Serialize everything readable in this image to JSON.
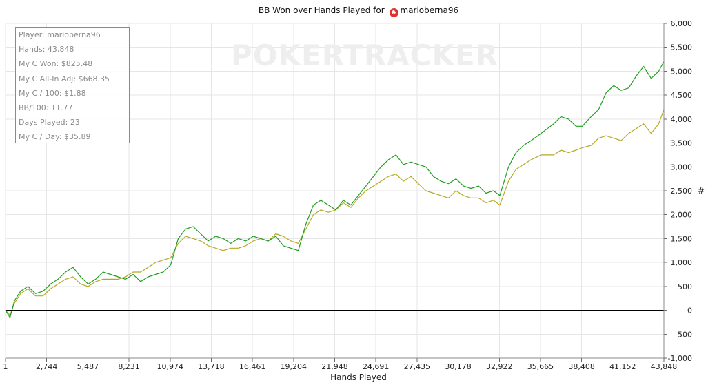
{
  "title_prefix": "BB Won over Hands Played for",
  "player_name": "marioberna96",
  "watermark": "POKERTRACKER",
  "stats": [
    "Player: marioberna96",
    "Hands: 43,848",
    "My C Won: $825.48",
    "My C All-In Adj: $668.35",
    "My C / 100: $1.88",
    "BB/100: 11.77",
    "Days Played: 23",
    "My C / Day: $35.89"
  ],
  "colors": {
    "won": "#1f9e1f",
    "allin_adj": "#b5a922",
    "grid": "#e6e6e6",
    "axis": "#000000"
  },
  "chart_data": {
    "type": "line",
    "title": "BB Won over Hands Played for marioberna96",
    "xlabel": "Hands Played",
    "ylabel": "#",
    "xlim": [
      1,
      43848
    ],
    "ylim": [
      -1000,
      6000
    ],
    "x_ticks": [
      "1",
      "2,744",
      "5,487",
      "8,231",
      "10,974",
      "13,718",
      "16,461",
      "19,204",
      "21,948",
      "24,691",
      "27,435",
      "30,178",
      "32,922",
      "35,665",
      "38,408",
      "41,152",
      "43,848"
    ],
    "y_ticks": [
      "6,000",
      "5,500",
      "5,000",
      "4,500",
      "4,000",
      "3,500",
      "3,000",
      "2,500",
      "2,000",
      "1,500",
      "1,000",
      "500",
      "0",
      "-500",
      "-1,000"
    ],
    "y_tick_values": [
      6000,
      5500,
      5000,
      4500,
      4000,
      3500,
      3000,
      2500,
      2000,
      1500,
      1000,
      500,
      0,
      -500,
      -1000
    ],
    "grid": true,
    "series": [
      {
        "color": "#1f9e1f",
        "points": [
          [
            1,
            0
          ],
          [
            300,
            -150
          ],
          [
            600,
            200
          ],
          [
            1000,
            400
          ],
          [
            1500,
            500
          ],
          [
            2000,
            350
          ],
          [
            2500,
            400
          ],
          [
            3000,
            550
          ],
          [
            3500,
            650
          ],
          [
            4000,
            800
          ],
          [
            4500,
            900
          ],
          [
            5000,
            700
          ],
          [
            5500,
            550
          ],
          [
            6000,
            650
          ],
          [
            6500,
            800
          ],
          [
            7000,
            750
          ],
          [
            7500,
            700
          ],
          [
            8000,
            650
          ],
          [
            8500,
            750
          ],
          [
            9000,
            600
          ],
          [
            9500,
            700
          ],
          [
            10000,
            750
          ],
          [
            10500,
            800
          ],
          [
            11000,
            950
          ],
          [
            11500,
            1500
          ],
          [
            12000,
            1700
          ],
          [
            12500,
            1750
          ],
          [
            13000,
            1600
          ],
          [
            13500,
            1450
          ],
          [
            14000,
            1550
          ],
          [
            14500,
            1500
          ],
          [
            15000,
            1400
          ],
          [
            15500,
            1500
          ],
          [
            16000,
            1450
          ],
          [
            16500,
            1550
          ],
          [
            17000,
            1500
          ],
          [
            17500,
            1450
          ],
          [
            18000,
            1550
          ],
          [
            18500,
            1350
          ],
          [
            19000,
            1300
          ],
          [
            19500,
            1250
          ],
          [
            20000,
            1800
          ],
          [
            20500,
            2200
          ],
          [
            21000,
            2300
          ],
          [
            21500,
            2200
          ],
          [
            22000,
            2100
          ],
          [
            22500,
            2300
          ],
          [
            23000,
            2200
          ],
          [
            23500,
            2400
          ],
          [
            24000,
            2600
          ],
          [
            24500,
            2800
          ],
          [
            25000,
            3000
          ],
          [
            25500,
            3150
          ],
          [
            26000,
            3250
          ],
          [
            26500,
            3050
          ],
          [
            27000,
            3100
          ],
          [
            27500,
            3050
          ],
          [
            28000,
            3000
          ],
          [
            28500,
            2800
          ],
          [
            29000,
            2700
          ],
          [
            29500,
            2650
          ],
          [
            30000,
            2750
          ],
          [
            30500,
            2600
          ],
          [
            31000,
            2550
          ],
          [
            31500,
            2600
          ],
          [
            32000,
            2450
          ],
          [
            32500,
            2500
          ],
          [
            32922,
            2400
          ],
          [
            33500,
            3000
          ],
          [
            34000,
            3300
          ],
          [
            34500,
            3450
          ],
          [
            35000,
            3550
          ],
          [
            35665,
            3700
          ],
          [
            36500,
            3900
          ],
          [
            37000,
            4050
          ],
          [
            37500,
            4000
          ],
          [
            38000,
            3850
          ],
          [
            38408,
            3850
          ],
          [
            39000,
            4050
          ],
          [
            39500,
            4200
          ],
          [
            40000,
            4550
          ],
          [
            40500,
            4700
          ],
          [
            41000,
            4600
          ],
          [
            41500,
            4650
          ],
          [
            42000,
            4900
          ],
          [
            42500,
            5100
          ],
          [
            43000,
            4850
          ],
          [
            43500,
            5000
          ],
          [
            43848,
            5200
          ]
        ]
      },
      {
        "color": "#b5a922",
        "points": [
          [
            1,
            0
          ],
          [
            300,
            -100
          ],
          [
            600,
            150
          ],
          [
            1000,
            350
          ],
          [
            1500,
            450
          ],
          [
            2000,
            300
          ],
          [
            2500,
            300
          ],
          [
            3000,
            450
          ],
          [
            3500,
            550
          ],
          [
            4000,
            650
          ],
          [
            4500,
            700
          ],
          [
            5000,
            550
          ],
          [
            5500,
            500
          ],
          [
            6000,
            600
          ],
          [
            6500,
            650
          ],
          [
            7000,
            650
          ],
          [
            7500,
            650
          ],
          [
            8000,
            700
          ],
          [
            8500,
            800
          ],
          [
            9000,
            800
          ],
          [
            9500,
            900
          ],
          [
            10000,
            1000
          ],
          [
            10500,
            1050
          ],
          [
            11000,
            1100
          ],
          [
            11500,
            1400
          ],
          [
            12000,
            1550
          ],
          [
            12500,
            1500
          ],
          [
            13000,
            1450
          ],
          [
            13500,
            1350
          ],
          [
            14000,
            1300
          ],
          [
            14500,
            1250
          ],
          [
            15000,
            1300
          ],
          [
            15500,
            1300
          ],
          [
            16000,
            1350
          ],
          [
            16500,
            1450
          ],
          [
            17000,
            1500
          ],
          [
            17500,
            1450
          ],
          [
            18000,
            1600
          ],
          [
            18500,
            1550
          ],
          [
            19000,
            1450
          ],
          [
            19500,
            1400
          ],
          [
            20000,
            1700
          ],
          [
            20500,
            2000
          ],
          [
            21000,
            2100
          ],
          [
            21500,
            2050
          ],
          [
            22000,
            2100
          ],
          [
            22500,
            2250
          ],
          [
            23000,
            2150
          ],
          [
            23500,
            2350
          ],
          [
            24000,
            2500
          ],
          [
            24500,
            2600
          ],
          [
            25000,
            2700
          ],
          [
            25500,
            2800
          ],
          [
            26000,
            2850
          ],
          [
            26500,
            2700
          ],
          [
            27000,
            2800
          ],
          [
            27500,
            2650
          ],
          [
            28000,
            2500
          ],
          [
            28500,
            2450
          ],
          [
            29000,
            2400
          ],
          [
            29500,
            2350
          ],
          [
            30000,
            2500
          ],
          [
            30500,
            2400
          ],
          [
            31000,
            2350
          ],
          [
            31500,
            2350
          ],
          [
            32000,
            2250
          ],
          [
            32500,
            2300
          ],
          [
            32922,
            2200
          ],
          [
            33500,
            2700
          ],
          [
            34000,
            2950
          ],
          [
            34500,
            3050
          ],
          [
            35000,
            3150
          ],
          [
            35665,
            3250
          ],
          [
            36500,
            3250
          ],
          [
            37000,
            3350
          ],
          [
            37500,
            3300
          ],
          [
            38000,
            3350
          ],
          [
            38408,
            3400
          ],
          [
            39000,
            3450
          ],
          [
            39500,
            3600
          ],
          [
            40000,
            3650
          ],
          [
            40500,
            3600
          ],
          [
            41000,
            3550
          ],
          [
            41500,
            3700
          ],
          [
            42000,
            3800
          ],
          [
            42500,
            3900
          ],
          [
            43000,
            3700
          ],
          [
            43500,
            3900
          ],
          [
            43848,
            4200
          ]
        ]
      }
    ]
  }
}
